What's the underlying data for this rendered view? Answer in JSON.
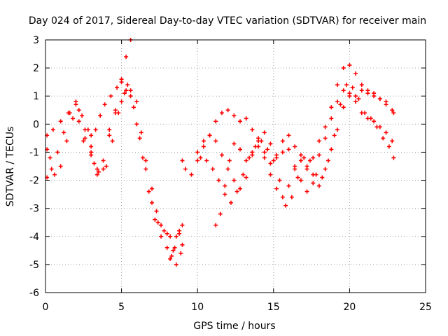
{
  "chart_data": {
    "type": "scatter",
    "title": "Day 024 of 2017, Sidereal Day-to-day VTEC variation (SDTVAR) for receiver main",
    "xlabel": "GPS time / hours",
    "ylabel": "SDTVAR / TECUs",
    "xlim": [
      0,
      25
    ],
    "ylim": [
      -6,
      3
    ],
    "xticks": [
      0,
      5,
      10,
      15,
      20,
      25
    ],
    "yticks": [
      -6,
      -5,
      -4,
      -3,
      -2,
      -1,
      0,
      1,
      2,
      3
    ],
    "xtick_labels": [
      "0",
      "5",
      "10",
      "15",
      "20",
      "25"
    ],
    "ytick_labels": [
      "-6",
      "-5",
      "-4",
      "-3",
      "-2",
      "-1",
      "0",
      "1",
      "2",
      "3"
    ],
    "grid": true,
    "legend": "none",
    "marker": "plus",
    "color": "#ff0000",
    "series": [
      {
        "x": [
          0.1,
          0.5,
          1.0,
          1.5,
          2.0,
          2.2,
          2.6,
          3.0,
          3.2,
          3.4,
          3.8,
          4.2,
          4.6,
          5.0,
          5.3,
          5.6,
          6.0,
          6.4,
          6.8,
          7.2,
          7.6,
          8.0,
          8.2,
          8.4,
          8.6,
          8.8,
          9.0
        ],
        "y": [
          -0.4,
          -0.2,
          0.1,
          0.4,
          0.8,
          0.5,
          -0.2,
          -0.8,
          -1.4,
          -1.8,
          -1.6,
          -0.2,
          0.4,
          0.8,
          1.2,
          1.0,
          0.0,
          -1.2,
          -2.4,
          -3.4,
          -4.0,
          -4.4,
          -4.8,
          -4.5,
          -4.0,
          -3.8,
          -4.3
        ]
      },
      {
        "x": [
          0.1,
          0.4,
          0.8,
          1.2,
          1.6,
          2.0,
          2.4,
          2.8,
          3.0,
          3.3,
          3.6,
          3.9,
          4.3,
          4.7,
          5.0,
          5.4,
          5.8,
          6.2,
          6.6,
          7.0,
          7.4,
          7.8,
          8.2,
          8.5,
          8.8,
          9.0
        ],
        "y": [
          -1.9,
          -1.6,
          -1.0,
          -0.3,
          0.4,
          0.7,
          0.3,
          -0.2,
          -0.4,
          -0.2,
          0.3,
          0.7,
          1.0,
          1.3,
          1.5,
          1.4,
          0.6,
          -0.5,
          -1.6,
          -2.8,
          -3.5,
          -3.8,
          -4.0,
          -4.4,
          -3.9,
          -3.6
        ]
      },
      {
        "x": [
          0.1,
          0.3,
          0.6,
          1.0,
          1.4,
          1.8,
          2.2,
          2.6,
          3.0,
          3.4,
          3.8,
          4.2,
          4.6,
          5.0,
          5.3,
          5.6
        ],
        "y": [
          -0.9,
          -1.2,
          -1.8,
          -1.5,
          -0.6,
          0.2,
          0.1,
          -0.5,
          -1.1,
          -1.6,
          -1.3,
          -0.4,
          0.5,
          1.6,
          2.4,
          3.0
        ]
      },
      {
        "x": [
          2.5,
          3.0,
          3.5,
          4.0,
          4.4,
          4.8,
          5.2,
          5.6,
          6.0,
          6.3,
          6.6,
          7.0,
          7.3,
          7.6,
          8.0,
          8.3,
          8.6,
          8.9
        ],
        "y": [
          -0.6,
          -1.0,
          -1.7,
          -1.5,
          -0.6,
          0.4,
          1.1,
          1.2,
          0.8,
          -0.3,
          -1.3,
          -2.3,
          -3.1,
          -3.6,
          -3.9,
          -4.7,
          -5.0,
          -4.6
        ]
      },
      {
        "x": [
          9.0,
          9.2,
          9.6,
          10.0,
          10.4,
          10.8,
          11.2,
          11.6,
          12.0,
          12.4,
          12.8,
          13.2,
          13.6,
          14.0,
          14.4,
          14.8,
          15.2,
          15.6,
          16.0,
          16.4,
          16.8,
          17.2,
          17.6,
          18.0,
          18.4,
          18.8,
          19.2,
          19.6,
          20.0,
          20.4,
          20.8,
          21.2,
          21.6,
          22.0,
          22.4,
          22.8
        ],
        "y": [
          -1.3,
          -1.6,
          -1.8,
          -1.3,
          -0.8,
          -0.4,
          0.1,
          0.4,
          0.5,
          0.3,
          0.1,
          0.2,
          -0.2,
          -0.6,
          -1.0,
          -1.4,
          -1.1,
          -0.6,
          -0.9,
          -1.5,
          -2.0,
          -2.4,
          -1.8,
          -1.1,
          -0.5,
          0.2,
          0.8,
          1.2,
          1.1,
          1.0,
          1.2,
          1.1,
          1.0,
          0.9,
          0.8,
          0.5
        ]
      },
      {
        "x": [
          10.0,
          10.4,
          10.8,
          11.2,
          11.6,
          12.0,
          12.4,
          12.8,
          13.2,
          13.6,
          14.0,
          14.4,
          14.8,
          15.2,
          15.6,
          16.0,
          16.4,
          16.8,
          17.2,
          17.6,
          18.0,
          18.4,
          18.8,
          19.2,
          19.6,
          20.0,
          20.4,
          20.8,
          21.2,
          21.6,
          22.0,
          22.4,
          22.8
        ],
        "y": [
          -1.0,
          -0.6,
          -0.4,
          -0.6,
          -1.1,
          -1.6,
          -2.0,
          -2.3,
          -1.9,
          -1.1,
          -0.8,
          -1.2,
          -1.8,
          -2.3,
          -2.6,
          -2.2,
          -1.6,
          -1.1,
          -1.5,
          -2.1,
          -2.2,
          -1.6,
          -0.9,
          -0.2,
          0.6,
          1.0,
          0.8,
          0.4,
          0.2,
          0.1,
          -0.1,
          -0.3,
          -0.6
        ]
      },
      {
        "x": [
          10.2,
          10.6,
          11.0,
          11.4,
          11.8,
          12.2,
          12.6,
          13.0,
          13.4,
          13.8,
          14.2,
          14.6,
          15.0,
          15.4,
          15.8,
          16.2,
          16.6,
          17.0,
          17.4,
          17.8,
          18.2,
          18.6,
          19.0,
          19.4,
          19.8,
          20.2,
          20.6,
          21.0,
          21.4,
          21.8,
          22.2,
          22.6,
          22.9
        ],
        "y": [
          -1.2,
          -1.3,
          -1.6,
          -2.0,
          -2.5,
          -2.8,
          -2.4,
          -1.8,
          -1.2,
          -0.8,
          -0.6,
          -0.9,
          -1.3,
          -2.0,
          -2.9,
          -2.6,
          -1.9,
          -1.2,
          -1.3,
          -1.8,
          -1.9,
          -1.3,
          -0.4,
          0.7,
          1.4,
          1.3,
          0.9,
          0.4,
          0.2,
          -0.1,
          -0.5,
          -0.8,
          -1.2
        ]
      },
      {
        "x": [
          11.2,
          11.5,
          11.8,
          12.1,
          12.4,
          12.8,
          13.2,
          13.6,
          14.0,
          14.4,
          14.8,
          15.2,
          15.6,
          16.0,
          16.4,
          16.8,
          17.2,
          17.6,
          18.0,
          18.4,
          18.8,
          19.2,
          19.6,
          20.0,
          20.4,
          20.8,
          21.2,
          21.6,
          22.0,
          22.4,
          22.9
        ],
        "y": [
          -3.6,
          -3.2,
          -2.2,
          -1.3,
          -0.7,
          -0.9,
          -1.3,
          -1.0,
          -0.5,
          -0.3,
          -0.7,
          -1.2,
          -1.0,
          -0.4,
          -0.8,
          -1.3,
          -1.6,
          -1.2,
          -0.6,
          -0.1,
          0.6,
          1.4,
          2.0,
          2.1,
          1.8,
          1.4,
          1.2,
          1.1,
          0.9,
          0.7,
          0.4
        ]
      }
    ]
  }
}
